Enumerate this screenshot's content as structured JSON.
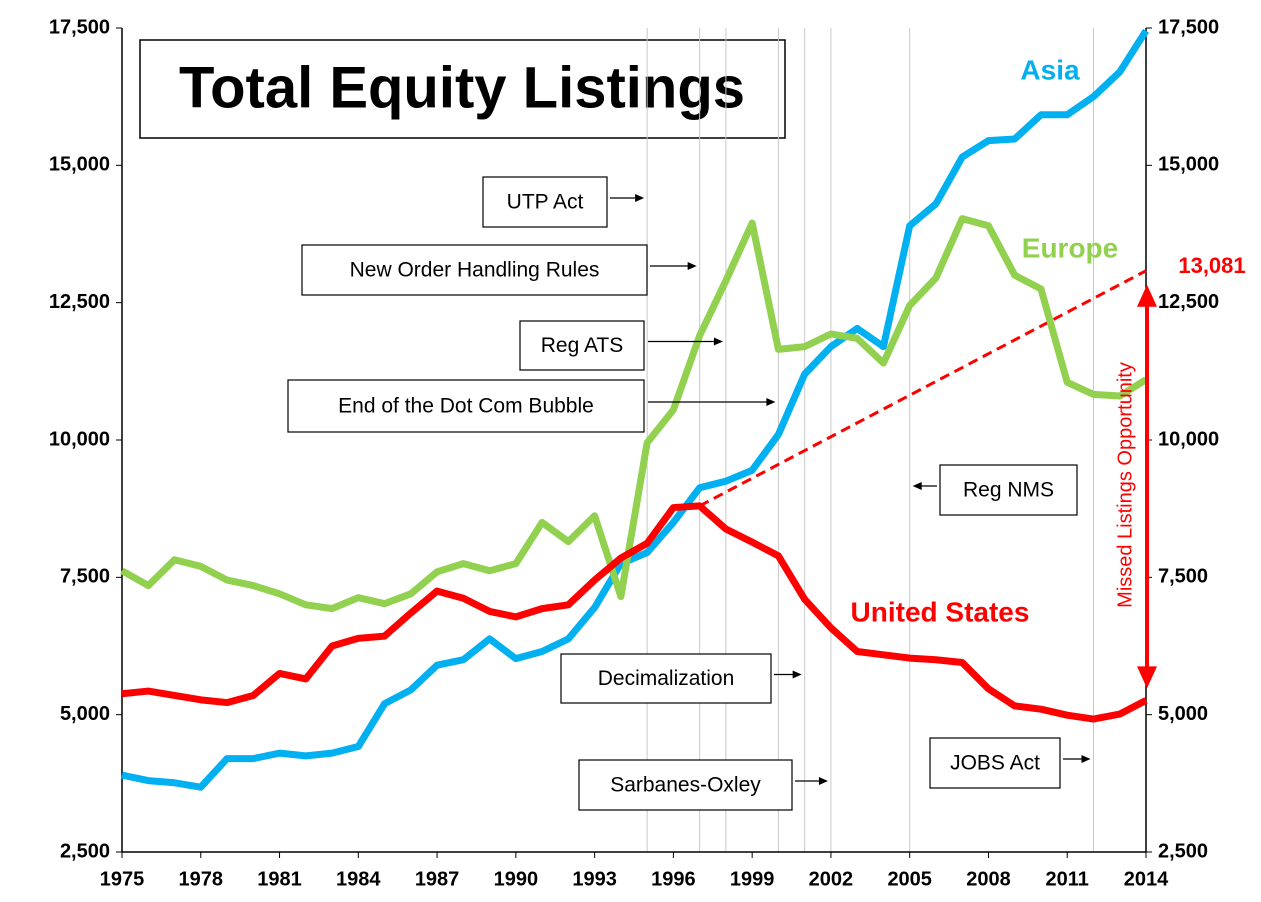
{
  "chart_data": {
    "type": "line",
    "title": "Total Equity Listings",
    "x": [
      1975,
      1976,
      1977,
      1978,
      1979,
      1980,
      1981,
      1982,
      1983,
      1984,
      1985,
      1986,
      1987,
      1988,
      1989,
      1990,
      1991,
      1992,
      1993,
      1994,
      1995,
      1996,
      1997,
      1998,
      1999,
      2000,
      2001,
      2002,
      2003,
      2004,
      2005,
      2006,
      2007,
      2008,
      2009,
      2010,
      2011,
      2012,
      2013,
      2014
    ],
    "series": [
      {
        "name": "Asia",
        "color": "#00b0f0",
        "values": [
          3900,
          3800,
          3760,
          3680,
          4200,
          4200,
          4300,
          4250,
          4300,
          4420,
          5200,
          5450,
          5900,
          6000,
          6380,
          6020,
          6150,
          6380,
          6950,
          7750,
          7950,
          8500,
          9130,
          9250,
          9450,
          10100,
          11200,
          11700,
          12030,
          11700,
          13900,
          14300,
          15150,
          15450,
          15480,
          15920,
          15920,
          16250,
          16700,
          17450
        ]
      },
      {
        "name": "Europe",
        "color": "#92d050",
        "values": [
          7620,
          7350,
          7820,
          7700,
          7450,
          7350,
          7200,
          7000,
          6930,
          7130,
          7020,
          7200,
          7600,
          7750,
          7620,
          7750,
          8500,
          8150,
          8620,
          7150,
          9950,
          10550,
          11900,
          12900,
          13950,
          11650,
          11700,
          11930,
          11850,
          11400,
          12450,
          12950,
          14030,
          13900,
          13000,
          12750,
          11050,
          10830,
          10800,
          11100
        ]
      },
      {
        "name": "United States",
        "color": "#ff0000",
        "values": [
          5380,
          5430,
          5350,
          5270,
          5220,
          5350,
          5750,
          5650,
          6250,
          6390,
          6430,
          6850,
          7250,
          7120,
          6880,
          6780,
          6930,
          7000,
          7450,
          7850,
          8120,
          8770,
          8800,
          8380,
          8140,
          7890,
          7100,
          6580,
          6150,
          6090,
          6030,
          6000,
          5950,
          5470,
          5160,
          5100,
          4990,
          4920,
          5010,
          5260
        ]
      }
    ],
    "projection": {
      "x": [
        1997,
        2014
      ],
      "values": [
        8800,
        13081
      ],
      "color": "#ff0000",
      "end_label": "13,081",
      "annotation": "Missed Listings Opportunity"
    },
    "events": [
      {
        "text": "UTP Act",
        "x": 1995
      },
      {
        "text": "New Order Handling Rules",
        "x": 1997
      },
      {
        "text": "Reg ATS",
        "x": 1998
      },
      {
        "text": "End of the Dot Com Bubble",
        "x": 2000
      },
      {
        "text": "Reg NMS",
        "x": 2005
      },
      {
        "text": "Decimalization",
        "x": 2001
      },
      {
        "text": "Sarbanes-Oxley",
        "x": 2002
      },
      {
        "text": "JOBS Act",
        "x": 2012
      }
    ],
    "xlim": [
      1975,
      2014
    ],
    "xticks": [
      1975,
      1978,
      1981,
      1984,
      1987,
      1990,
      1993,
      1996,
      1999,
      2002,
      2005,
      2008,
      2011,
      2014
    ],
    "ylim": [
      2500,
      17500
    ],
    "yticks": [
      {
        "value": 2500,
        "label": "2,500"
      },
      {
        "value": 5000,
        "label": "5,000"
      },
      {
        "value": 7500,
        "label": "7,500"
      },
      {
        "value": 10000,
        "label": "10,000"
      },
      {
        "value": 12500,
        "label": "12,500"
      },
      {
        "value": 15000,
        "label": "15,000"
      },
      {
        "value": 17500,
        "label": "17,500"
      }
    ],
    "y2lim": [
      2500,
      17500
    ],
    "y2ticks": [
      {
        "value": 2500,
        "label": "2,500"
      },
      {
        "value": 5000,
        "label": "5,000"
      },
      {
        "value": 7500,
        "label": "7,500"
      },
      {
        "value": 10000,
        "label": "10,000"
      },
      {
        "value": 12500,
        "label": "12,500"
      },
      {
        "value": 15000,
        "label": "15,000"
      },
      {
        "value": 17500,
        "label": "17,500"
      }
    ]
  }
}
